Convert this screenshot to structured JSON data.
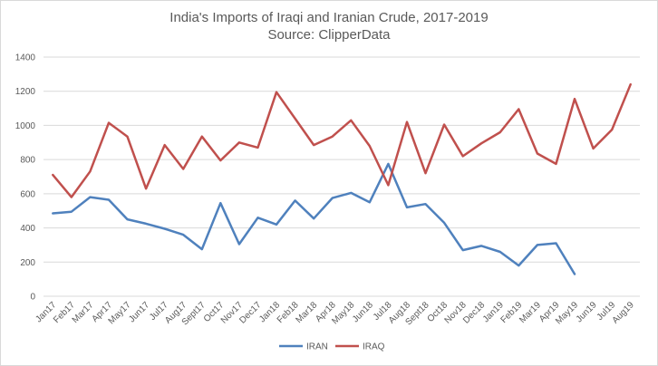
{
  "chart_data": {
    "type": "line",
    "title": "India's Imports of Iraqi and Iranian Crude, 2017-2019",
    "subtitle": "Source: ClipperData",
    "xlabel": "",
    "ylabel": "",
    "ylim": [
      0,
      1400
    ],
    "yticks": [
      0,
      200,
      400,
      600,
      800,
      1000,
      1200,
      1400
    ],
    "grid": true,
    "legend_position": "bottom",
    "categories": [
      "Jan17",
      "Feb17",
      "Mar17",
      "Apr17",
      "May17",
      "Jun17",
      "Jul17",
      "Aug17",
      "Sept17",
      "Oct17",
      "Nov17",
      "Dec17",
      "Jan18",
      "Feb18",
      "Mar18",
      "Apr18",
      "May18",
      "Jun18",
      "Jul18",
      "Aug18",
      "Sept18",
      "Oct18",
      "Nov18",
      "Dec18",
      "Jan19",
      "Feb19",
      "Mar19",
      "Apr19",
      "May19",
      "Jun19",
      "Jul19",
      "Aug19"
    ],
    "series": [
      {
        "name": "IRAN",
        "color": "#4f81bd",
        "values": [
          485,
          495,
          580,
          565,
          450,
          425,
          395,
          360,
          275,
          545,
          305,
          460,
          420,
          560,
          455,
          575,
          605,
          550,
          775,
          520,
          540,
          430,
          270,
          295,
          260,
          180,
          300,
          310,
          130,
          null,
          null,
          null
        ]
      },
      {
        "name": "IRAQ",
        "color": "#c0504d",
        "values": [
          710,
          580,
          730,
          1015,
          935,
          630,
          885,
          745,
          935,
          795,
          900,
          870,
          1195,
          1040,
          885,
          935,
          1030,
          880,
          650,
          1020,
          720,
          1005,
          820,
          895,
          960,
          1095,
          835,
          775,
          1155,
          865,
          975,
          1240
        ]
      }
    ]
  }
}
